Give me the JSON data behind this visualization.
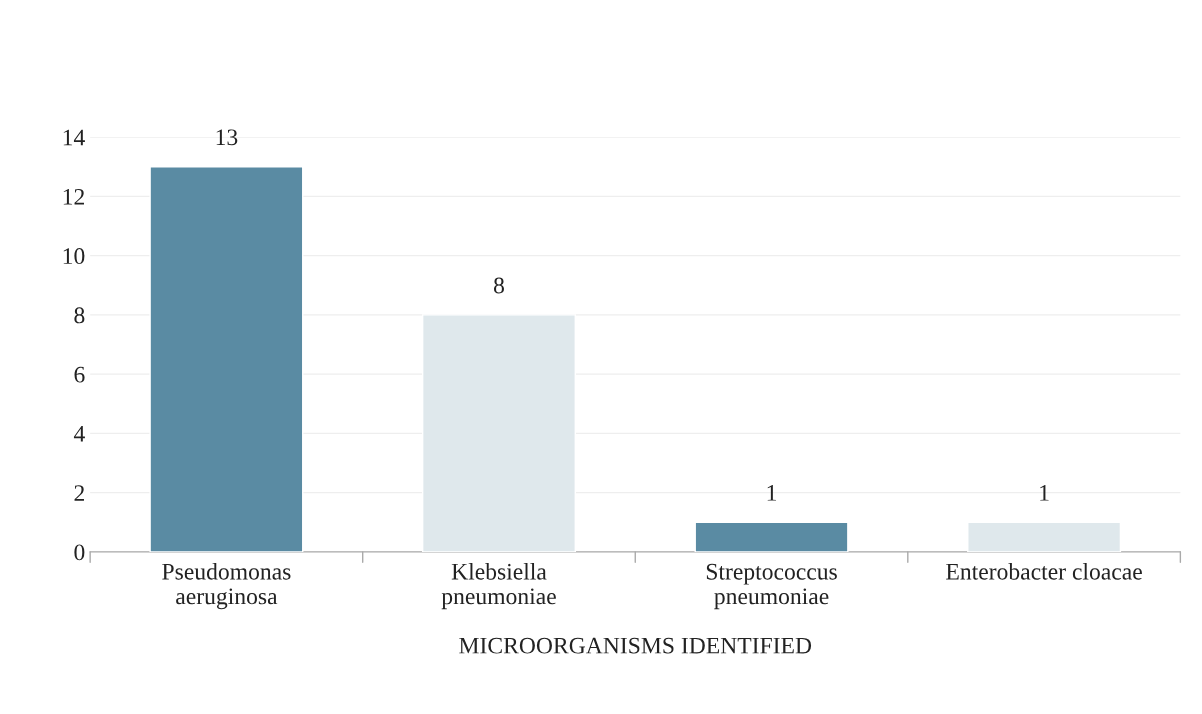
{
  "chart_data": {
    "type": "bar",
    "xlabel": "MICROORGANISMS IDENTIFIED",
    "categories": [
      "Pseudomonas\naeruginosa",
      "Klebsiella\npneumoniae",
      "Streptococcus\npneumoniae",
      "Enterobacter cloacae"
    ],
    "values": [
      13,
      8,
      1,
      1
    ],
    "colors": [
      "#5a8ba3",
      "#dfe8ec",
      "#5a8ba3",
      "#dfe8ec"
    ],
    "ylim": [
      0,
      14
    ],
    "yticks": [
      0,
      2,
      4,
      6,
      8,
      10,
      12,
      14
    ],
    "grid": "y",
    "data_labels": true
  }
}
